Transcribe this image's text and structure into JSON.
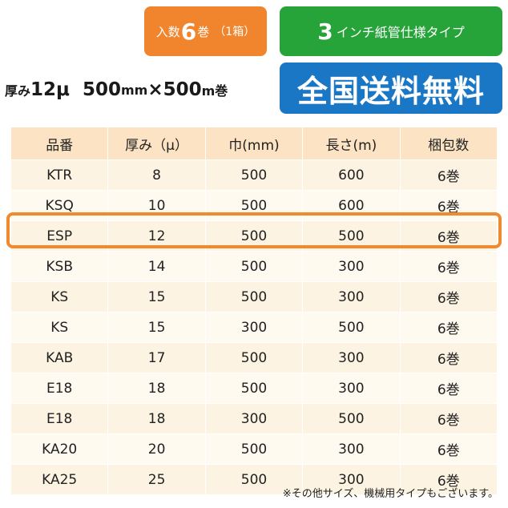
{
  "badges": {
    "quantity": {
      "prefix": "入数",
      "number": "6",
      "suffix": "巻",
      "note": "（1箱）"
    },
    "core": {
      "number": "3",
      "text": "インチ紙管仕様タイプ"
    },
    "shipping": "全国送料無料"
  },
  "spec": {
    "thickness_label": "厚み",
    "thickness_value": "12μ",
    "width": "500",
    "width_unit": "mm",
    "times": "×",
    "length": "500",
    "length_unit": "m巻"
  },
  "table": {
    "headers": [
      "品番",
      "厚み（μ）",
      "巾(mm)",
      "長さ(m)",
      "梱包数"
    ],
    "rows": [
      [
        "KTR",
        "8",
        "500",
        "600",
        "6巻"
      ],
      [
        "KSQ",
        "10",
        "500",
        "600",
        "6巻"
      ],
      [
        "ESP",
        "12",
        "500",
        "500",
        "6巻"
      ],
      [
        "KSB",
        "14",
        "500",
        "300",
        "6巻"
      ],
      [
        "KS",
        "15",
        "500",
        "300",
        "6巻"
      ],
      [
        "KS",
        "15",
        "300",
        "500",
        "6巻"
      ],
      [
        "KAB",
        "17",
        "500",
        "300",
        "6巻"
      ],
      [
        "E18",
        "18",
        "500",
        "300",
        "6巻"
      ],
      [
        "E18",
        "18",
        "300",
        "500",
        "6巻"
      ],
      [
        "KA20",
        "20",
        "500",
        "300",
        "6巻"
      ],
      [
        "KA25",
        "25",
        "500",
        "300",
        "6巻"
      ]
    ]
  },
  "footnote": "※その他サイズ、機械用タイプもございます。",
  "colors": {
    "badge_orange": "#f0852d",
    "badge_green": "#26a43a",
    "badge_blue": "#1a77c6",
    "header_bg": "#fbe3c3",
    "row_bg": "#fdf3e2",
    "highlight_border": "#ef8a2e"
  }
}
